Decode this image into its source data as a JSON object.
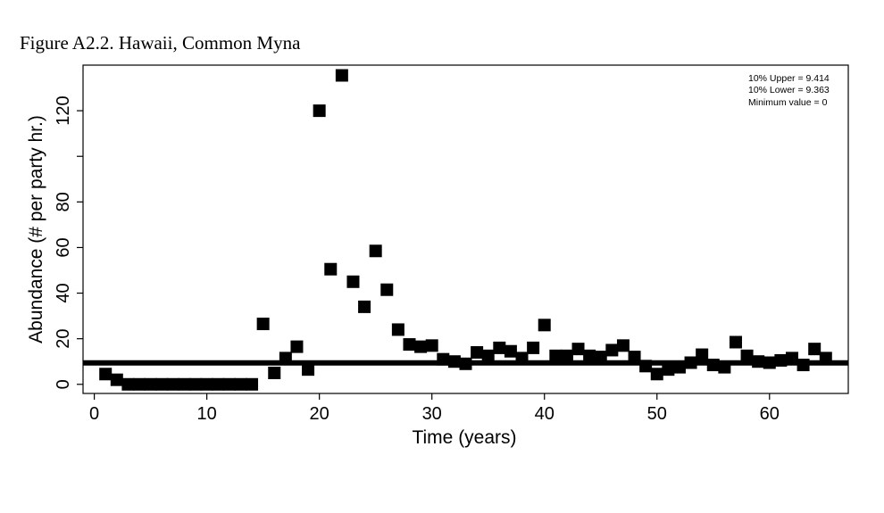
{
  "figure": {
    "caption": "Figure A2.2. Hawaii, Common Myna"
  },
  "chart_data": {
    "type": "scatter",
    "xlabel": "Time (years)",
    "ylabel": "Abundance (# per party hr.)",
    "xlim": [
      -1,
      67
    ],
    "ylim": [
      -4,
      140
    ],
    "x_ticks": [
      0,
      10,
      20,
      30,
      40,
      50,
      60
    ],
    "y_ticks": [
      0,
      20,
      40,
      60,
      80,
      100,
      120
    ],
    "y_tick_labels": [
      "0",
      "20",
      "40",
      "60",
      "80",
      "",
      "120"
    ],
    "marker": "square",
    "marker_color": "#000000",
    "reference_line": {
      "y": 9.4,
      "color": "#000000"
    },
    "annotations": [
      "10% Upper =  9.414",
      "10% Lower =  9.363",
      "Minimum value =  0"
    ],
    "points": [
      [
        1,
        4.5
      ],
      [
        2,
        2
      ],
      [
        3,
        0
      ],
      [
        4,
        0
      ],
      [
        5,
        0
      ],
      [
        6,
        0
      ],
      [
        7,
        0
      ],
      [
        8,
        0
      ],
      [
        9,
        0
      ],
      [
        10,
        0
      ],
      [
        11,
        0
      ],
      [
        12,
        0
      ],
      [
        13,
        0
      ],
      [
        14,
        0
      ],
      [
        15,
        26.5
      ],
      [
        16,
        5
      ],
      [
        17,
        11.5
      ],
      [
        18,
        16.5
      ],
      [
        19,
        6.5
      ],
      [
        20,
        120
      ],
      [
        21,
        50.5
      ],
      [
        22,
        135.5
      ],
      [
        23,
        45
      ],
      [
        24,
        34
      ],
      [
        25,
        58.5
      ],
      [
        26,
        41.5
      ],
      [
        27,
        24
      ],
      [
        28,
        17.5
      ],
      [
        29,
        16.5
      ],
      [
        30,
        17
      ],
      [
        31,
        11
      ],
      [
        32,
        10
      ],
      [
        33,
        9
      ],
      [
        34,
        14
      ],
      [
        35,
        12.5
      ],
      [
        36,
        16
      ],
      [
        37,
        14.5
      ],
      [
        38,
        11.5
      ],
      [
        39,
        16
      ],
      [
        40,
        26
      ],
      [
        41,
        12.5
      ],
      [
        42,
        12.5
      ],
      [
        43,
        15.5
      ],
      [
        44,
        12.5
      ],
      [
        45,
        12
      ],
      [
        46,
        15
      ],
      [
        47,
        17
      ],
      [
        48,
        12
      ],
      [
        49,
        8
      ],
      [
        50,
        4.5
      ],
      [
        51,
        6.5
      ],
      [
        52,
        7.5
      ],
      [
        53,
        9.5
      ],
      [
        54,
        13
      ],
      [
        55,
        8.5
      ],
      [
        56,
        7.5
      ],
      [
        57,
        18.5
      ],
      [
        58,
        12.5
      ],
      [
        59,
        10
      ],
      [
        60,
        9.5
      ],
      [
        61,
        10.5
      ],
      [
        62,
        11.5
      ],
      [
        63,
        8.5
      ],
      [
        64,
        15.5
      ],
      [
        65,
        11.5
      ]
    ]
  }
}
